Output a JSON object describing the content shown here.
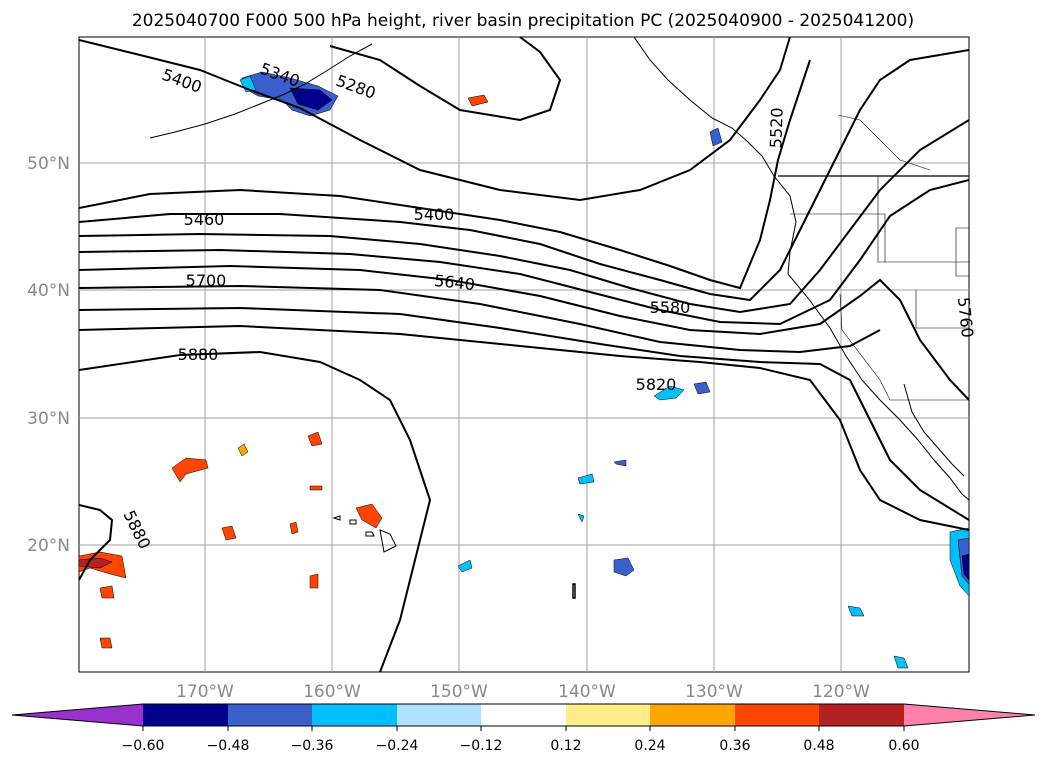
{
  "title": "2025040700 F000 500 hPa height, river basin precipitation PC (2025040900 - 2025041200)",
  "lat_labels": [
    "50°N",
    "40°N",
    "30°N",
    "20°N"
  ],
  "lon_labels": [
    "170°W",
    "160°W",
    "150°W",
    "140°W",
    "130°W",
    "120°W"
  ],
  "contour_labels": [
    "5400",
    "5340",
    "5280",
    "5460",
    "5400",
    "5520",
    "5700",
    "5640",
    "5580",
    "5880",
    "5820",
    "5880",
    "5760"
  ],
  "colorbar": {
    "ticks": [
      "−0.60",
      "−0.48",
      "−0.36",
      "−0.24",
      "−0.12",
      "0.12",
      "0.24",
      "0.36",
      "0.48",
      "0.60"
    ],
    "colors": [
      "#9932cc",
      "#00008b",
      "#3a5fcd",
      "#00bfff",
      "#b0e2ff",
      "#ffffff",
      "#ffec8b",
      "#ffa500",
      "#ff4500",
      "#b22222",
      "#ff82ab"
    ]
  }
}
